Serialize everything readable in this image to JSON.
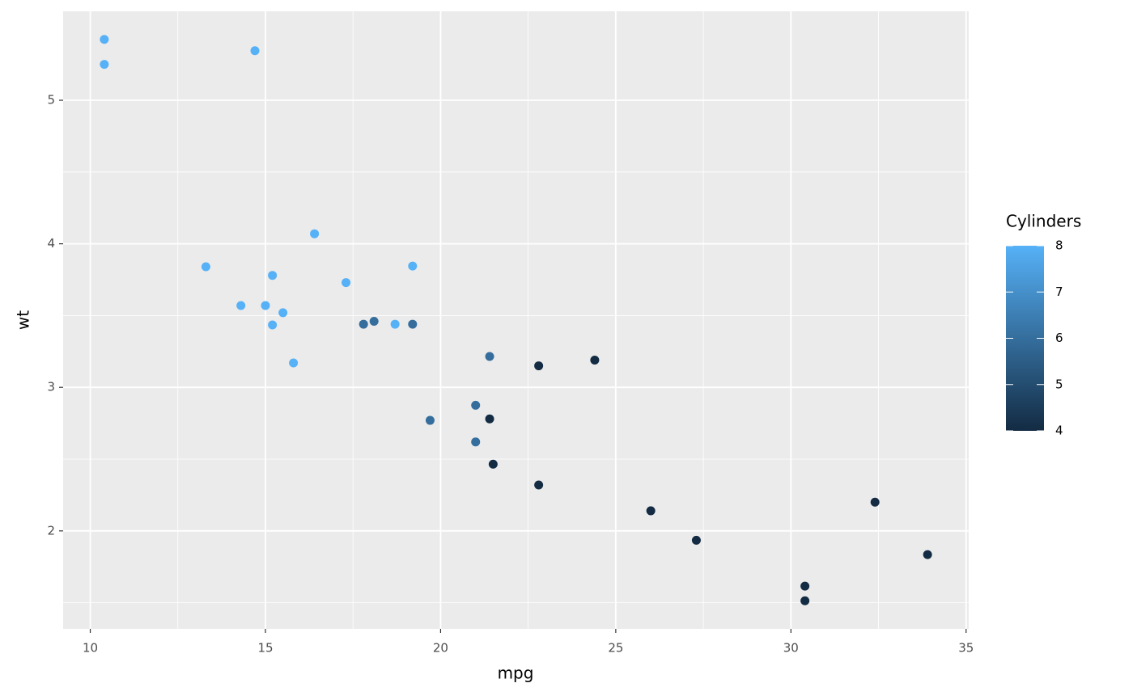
{
  "chart_data": {
    "type": "scatter",
    "x_label": "mpg",
    "y_label": "wt",
    "x": [
      21.0,
      21.0,
      22.8,
      21.4,
      18.7,
      18.1,
      14.3,
      24.4,
      22.8,
      19.2,
      17.8,
      16.4,
      17.3,
      15.2,
      10.4,
      10.4,
      14.7,
      32.4,
      30.4,
      33.9,
      21.5,
      15.5,
      15.2,
      13.3,
      19.2,
      27.3,
      26.0,
      30.4,
      15.8,
      19.7,
      15.0,
      21.4
    ],
    "y": [
      2.62,
      2.875,
      2.32,
      3.215,
      3.44,
      3.46,
      3.57,
      3.19,
      3.15,
      3.44,
      3.44,
      4.07,
      3.73,
      3.78,
      5.25,
      5.424,
      5.345,
      2.2,
      1.615,
      1.835,
      2.465,
      3.52,
      3.435,
      3.84,
      3.845,
      1.935,
      2.14,
      1.513,
      3.17,
      2.77,
      3.57,
      2.78
    ],
    "color_values": [
      6,
      6,
      4,
      6,
      8,
      6,
      8,
      4,
      4,
      6,
      6,
      8,
      8,
      8,
      8,
      8,
      8,
      4,
      4,
      4,
      4,
      8,
      8,
      8,
      8,
      4,
      4,
      4,
      8,
      6,
      8,
      4
    ],
    "xlim": [
      9.225,
      35.075
    ],
    "xticks": [
      10,
      15,
      20,
      25,
      30,
      35
    ],
    "ylim": [
      1.3175,
      5.6196
    ],
    "yticks": [
      2,
      3,
      4,
      5
    ],
    "grid": true,
    "legend": {
      "title": "Cylinders",
      "low_color": "#132B43",
      "high_color": "#56B1F7",
      "lim": [
        4,
        8
      ],
      "ticks": [
        4,
        5,
        6,
        7,
        8
      ]
    }
  }
}
